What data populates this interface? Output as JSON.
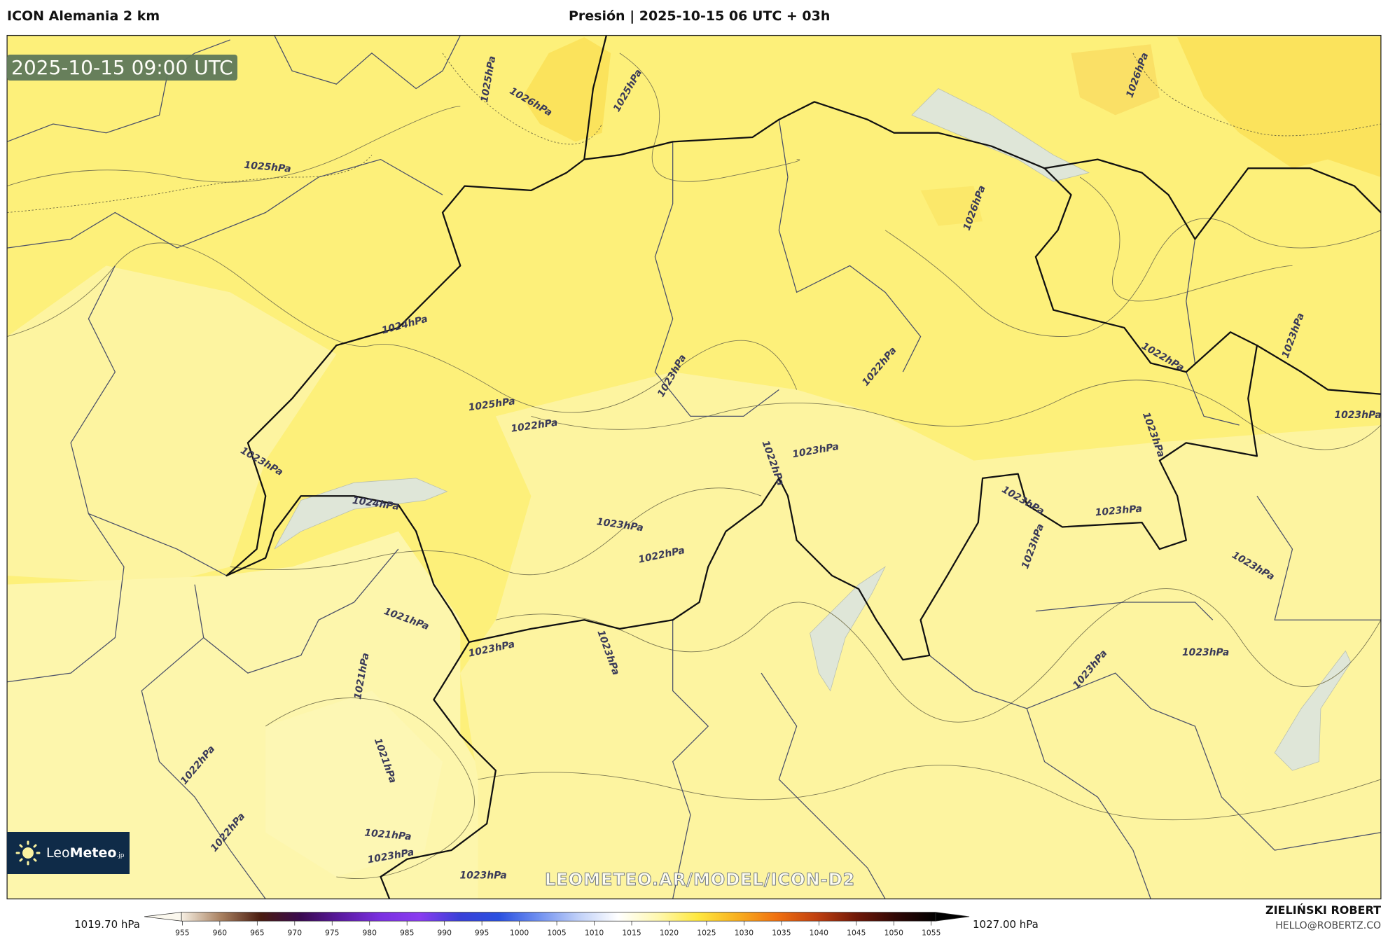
{
  "header": {
    "model": "ICON Alemania 2 km",
    "title": "Presión | 2025-10-15 06 UTC + 03h"
  },
  "map": {
    "valid_time": "2025-10-15 09:00 UTC",
    "watermark": "LEOMETEO.AR/MODEL/ICON-D2",
    "logo": {
      "light": "Leo",
      "bold": "Meteo",
      "suffix": ".jp"
    },
    "contour_labels": [
      "1025hPa",
      "1026hPa",
      "1025hPa",
      "1026hPa",
      "1025hPa",
      "1026hPa",
      "1024hPa",
      "1023hPa",
      "1022hPa",
      "1022hPa",
      "1023hPa",
      "1025hPa",
      "1022hPa",
      "1023hPa",
      "1023hPa",
      "1022hPa",
      "1023hPa",
      "1023hPa",
      "1024hPa",
      "1023hPa",
      "1023hPa",
      "1023hPa",
      "1023hPa",
      "1022hPa",
      "1023hPa",
      "1021hPa",
      "1023hPa",
      "1023hPa",
      "1021hPa",
      "1023hPa",
      "1023hPa",
      "1022hPa",
      "1021hPa",
      "1022hPa",
      "1021hPa",
      "1023hPa",
      "1023hPa"
    ],
    "colors": {
      "field": "#fdf07a",
      "field_low": "#fdf6a6",
      "field_high": "#fbe158",
      "border": "#111111",
      "admin": "#4a5068",
      "lake": "#dfe6d8"
    }
  },
  "colorbar": {
    "min_label": "1019.70 hPa",
    "max_label": "1027.00 hPa",
    "ticks": [
      "955",
      "960",
      "965",
      "970",
      "975",
      "980",
      "985",
      "990",
      "995",
      "1000",
      "1005",
      "1010",
      "1015",
      "1020",
      "1025",
      "1030",
      "1035",
      "1040",
      "1045",
      "1050",
      "1055"
    ],
    "stops": [
      "#f6efe2",
      "#a88060",
      "#4a1c10",
      "#3a0a50",
      "#5a1aa0",
      "#7a30e0",
      "#8a3cf0",
      "#3a40d8",
      "#2a50e0",
      "#7090f0",
      "#c0d0f8",
      "#ffffff",
      "#fff8b0",
      "#ffe840",
      "#f8b020",
      "#f07010",
      "#c04010",
      "#701808",
      "#300806",
      "#000000"
    ]
  },
  "signature": {
    "name": "ZIELIŃSKI ROBERT",
    "email": "HELLO@ROBERTZ.CO"
  }
}
